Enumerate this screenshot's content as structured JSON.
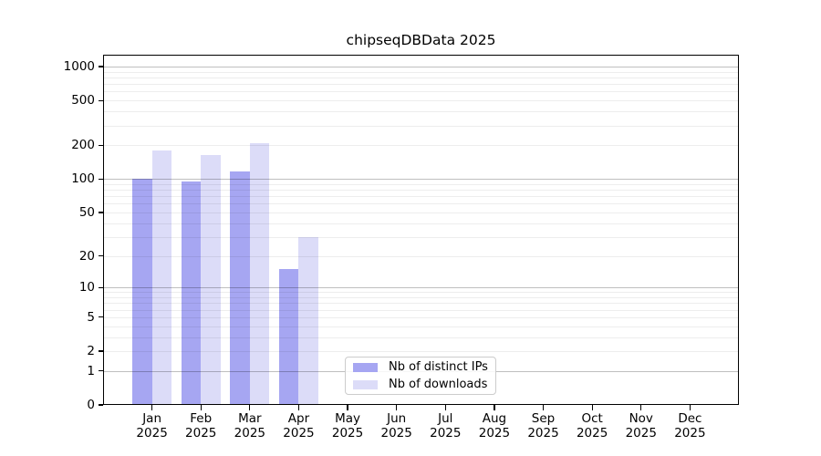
{
  "chart_data": {
    "type": "bar",
    "title": "chipseqDBData 2025",
    "categories": [
      "Jan",
      "Feb",
      "Mar",
      "Apr",
      "May",
      "Jun",
      "Jul",
      "Aug",
      "Sep",
      "Oct",
      "Nov",
      "Dec"
    ],
    "category_sublabel": "2025",
    "series": [
      {
        "name": "Nb of distinct IPs",
        "color": "#a6a6f2",
        "values": [
          100,
          95,
          116,
          15,
          0,
          0,
          0,
          0,
          0,
          0,
          0,
          0
        ]
      },
      {
        "name": "Nb of downloads",
        "color": "#dcdcf8",
        "values": [
          180,
          165,
          208,
          30,
          0,
          0,
          0,
          0,
          0,
          0,
          0,
          0
        ]
      }
    ],
    "yscale": "log1p",
    "ylim": [
      0,
      1275
    ],
    "yticks": {
      "values": [
        0,
        1,
        2,
        5,
        10,
        20,
        50,
        100,
        200,
        500,
        1000
      ],
      "labels": [
        "0",
        "1",
        "2",
        "5",
        "10",
        "20",
        "50",
        "100",
        "200",
        "500",
        "1000"
      ]
    },
    "grid": true,
    "legend_position": "lower center"
  }
}
